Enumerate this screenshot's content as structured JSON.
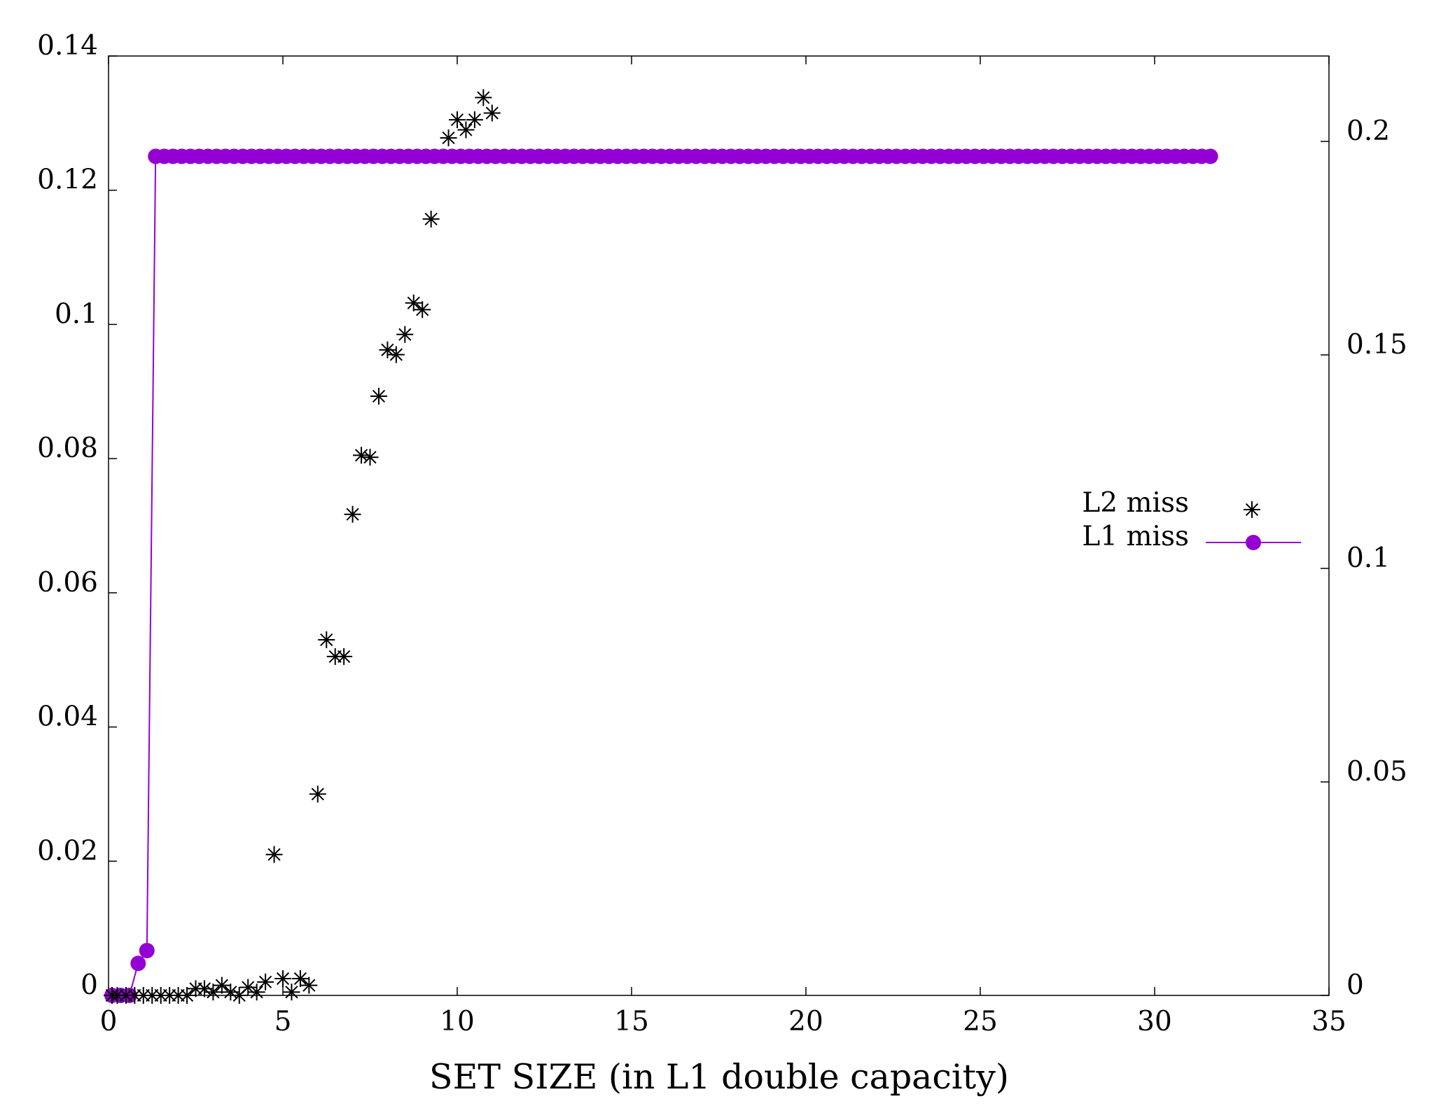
{
  "chart_data": {
    "type": "scatter",
    "xlabel": "SET SIZE (in L1 double capacity)",
    "ylabel": "",
    "y2label": "",
    "xlim": [
      0,
      35
    ],
    "ylim": [
      0,
      0.14
    ],
    "y2lim": [
      0,
      0.22
    ],
    "x_ticks": [
      "0",
      "5",
      "10",
      "15",
      "20",
      "25",
      "30",
      "35"
    ],
    "y_ticks": [
      "0",
      "0.02",
      "0.04",
      "0.06",
      "0.08",
      "0.1",
      "0.12",
      "0.14"
    ],
    "y2_ticks": [
      "0",
      "0.05",
      "0.1",
      "0.15",
      "0.2"
    ],
    "grid": false,
    "legend_position": "right-middle",
    "colors": {
      "l1": "#9400d3",
      "l2": "#000000",
      "axis": "#000000"
    },
    "series": [
      {
        "name": "L2 miss",
        "axis": "left",
        "marker": "asterisk",
        "x": [
          0.1,
          0.25,
          0.5,
          0.75,
          1.0,
          1.25,
          1.5,
          1.75,
          2.0,
          2.25,
          2.5,
          2.75,
          3.0,
          3.25,
          3.5,
          3.75,
          4.0,
          4.25,
          4.5,
          4.75,
          5.0,
          5.25,
          5.5,
          5.75,
          6.0,
          6.25,
          6.5,
          6.75,
          7.0,
          7.25,
          7.5,
          7.75,
          8.0,
          8.25,
          8.5,
          8.75,
          9.0,
          9.25,
          9.75,
          10.0,
          10.25,
          10.5,
          10.75,
          11.0
        ],
        "y": [
          0.0,
          0.0,
          0.0,
          0.0,
          0.0,
          0.0,
          0.0,
          0.0,
          0.0,
          0.0,
          0.001,
          0.001,
          0.0005,
          0.0015,
          0.0005,
          0.0,
          0.0012,
          0.0005,
          0.002,
          0.021,
          0.0025,
          0.0005,
          0.0025,
          0.0015,
          0.03,
          0.053,
          0.0505,
          0.0505,
          0.0717,
          0.0805,
          0.0802,
          0.0893,
          0.0962,
          0.0955,
          0.0985,
          0.1032,
          0.1022,
          0.1157,
          0.1278,
          0.1305,
          0.129,
          0.1305,
          0.1338,
          0.1315
        ]
      },
      {
        "name": "L1 miss",
        "axis": "right",
        "marker": "circle-line",
        "x_start": 0.1,
        "x_step": 0.25,
        "count": 127,
        "plateau": 0.1965,
        "initial_values": [
          0.0,
          0.0,
          0.0,
          0.0075,
          0.0105
        ]
      }
    ]
  }
}
